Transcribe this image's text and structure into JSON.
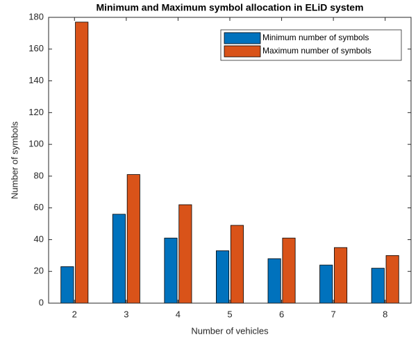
{
  "chart_data": {
    "type": "bar",
    "title": "Minimum and Maximum symbol allocation in ELiD system",
    "x_label": "Number of vehicles",
    "y_label": "Number of symbols",
    "x": [
      2,
      3,
      4,
      5,
      6,
      7,
      8
    ],
    "series": [
      {
        "name": "Minimum number of symbols",
        "color": "#0072bd",
        "values": [
          23,
          56,
          41,
          33,
          28,
          24,
          22
        ]
      },
      {
        "name": "Maximum number of symbols",
        "color": "#d95319",
        "values": [
          177,
          81,
          62,
          49,
          41,
          35,
          30
        ]
      }
    ],
    "xlim": [
      1.5,
      8.5
    ],
    "xticks": [
      2,
      3,
      4,
      5,
      6,
      7,
      8
    ],
    "ylim": [
      0,
      180
    ],
    "yticks": [
      0,
      20,
      40,
      60,
      80,
      100,
      120,
      140,
      160,
      180
    ],
    "legend": "upper right"
  }
}
